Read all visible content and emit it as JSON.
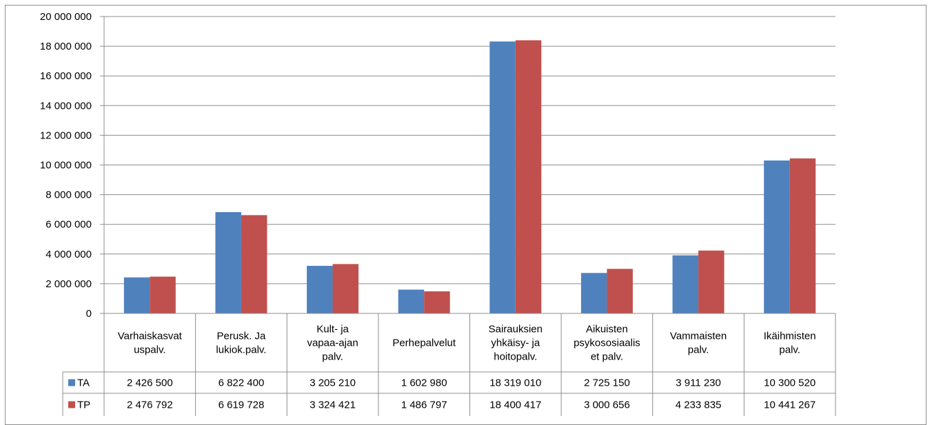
{
  "chart_data": {
    "type": "bar",
    "categories": [
      [
        "Varhaiskasvat",
        "uspalv."
      ],
      [
        "Perusk. Ja",
        "lukiok.palv."
      ],
      [
        "Kult- ja",
        "vapaa-ajan",
        "palv."
      ],
      [
        "Perhepalvelut"
      ],
      [
        "Sairauksien",
        "yhkäisy- ja",
        "hoitopalv."
      ],
      [
        "Aikuisten",
        "psykososiaalis",
        "et palv."
      ],
      [
        "Vammaisten",
        "palv."
      ],
      [
        "Ikäihmisten",
        "palv."
      ]
    ],
    "series": [
      {
        "name": "TA",
        "color": "#4f81bd",
        "values": [
          2426500,
          6822400,
          3205210,
          1602980,
          18319010,
          2725150,
          3911230,
          10300520
        ],
        "labels": [
          "2 426 500",
          "6 822 400",
          "3 205 210",
          "1 602 980",
          "18 319 010",
          "2 725 150",
          "3 911 230",
          "10 300 520"
        ]
      },
      {
        "name": "TP",
        "color": "#c0504d",
        "values": [
          2476792,
          6619728,
          3324421,
          1486797,
          18400417,
          3000656,
          4233835,
          10441267
        ],
        "labels": [
          "2 476 792",
          "6 619 728",
          "3 324 421",
          "1 486 797",
          "18 400 417",
          "3 000 656",
          "4 233 835",
          "10 441 267"
        ]
      }
    ],
    "ylim": [
      0,
      20000000
    ],
    "y_ticks": [
      "0",
      "2 000 000",
      "4 000 000",
      "6 000 000",
      "8 000 000",
      "10 000 000",
      "12 000 000",
      "14 000 000",
      "16 000 000",
      "18 000 000",
      "20 000 000"
    ],
    "y_tick_values": [
      0,
      2000000,
      4000000,
      6000000,
      8000000,
      10000000,
      12000000,
      14000000,
      16000000,
      18000000,
      20000000
    ],
    "grid": true,
    "legend": "data-table"
  }
}
